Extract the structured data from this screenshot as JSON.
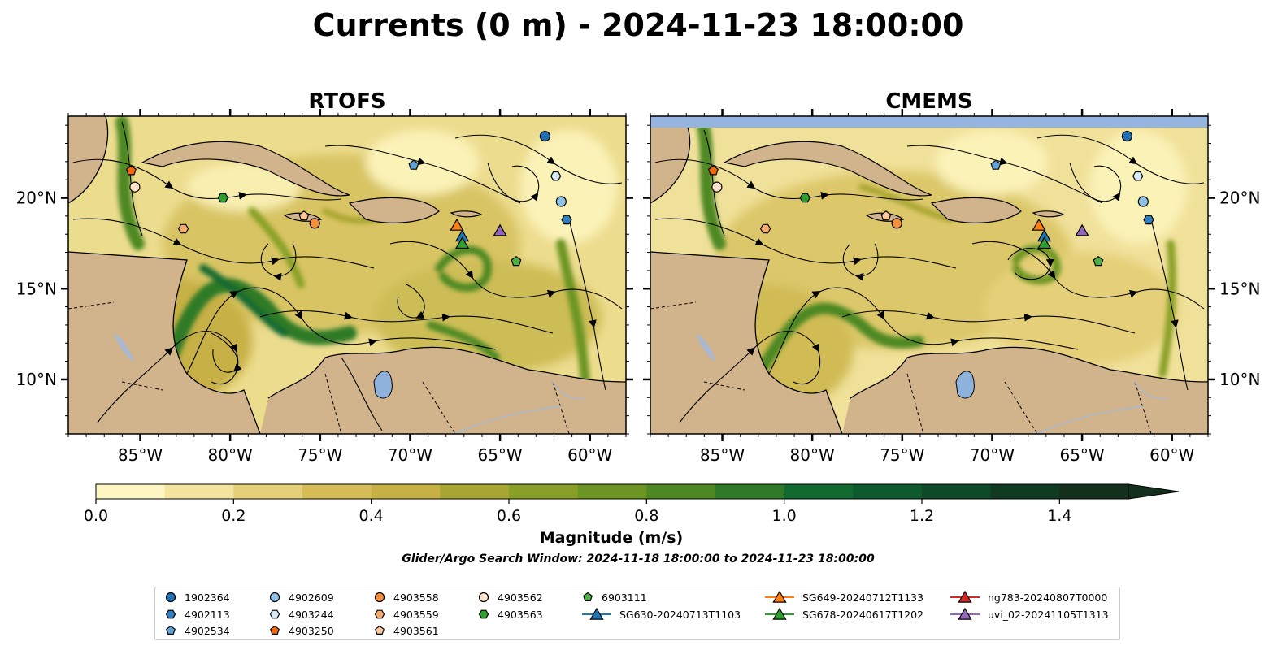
{
  "title": "Currents (0 m) - 2024-11-23 18:00:00",
  "panels": [
    {
      "name": "RTOFS"
    },
    {
      "name": "CMEMS"
    }
  ],
  "axes": {
    "x_ticks": [
      "85°W",
      "80°W",
      "75°W",
      "70°W",
      "65°W",
      "60°W"
    ],
    "x_values": [
      -85,
      -80,
      -75,
      -70,
      -65,
      -60
    ],
    "y_ticks": [
      "20°N",
      "15°N",
      "10°N"
    ],
    "y_values": [
      20,
      15,
      10
    ],
    "lon_range": [
      -89,
      -58
    ],
    "lat_range": [
      7,
      24.5
    ]
  },
  "colorbar": {
    "label": "Magnitude (m/s)",
    "ticks": [
      "0.0",
      "0.2",
      "0.4",
      "0.6",
      "0.8",
      "1.0",
      "1.2",
      "1.4"
    ],
    "tick_values": [
      0.0,
      0.2,
      0.4,
      0.6,
      0.8,
      1.0,
      1.2,
      1.4
    ],
    "range": [
      0.0,
      1.5
    ],
    "extend": "max",
    "colors": [
      "#fdf6c3",
      "#f3e59e",
      "#e5cf78",
      "#d7bd58",
      "#c7b045",
      "#a9a532",
      "#89a028",
      "#6c9524",
      "#4e8823",
      "#2f7a27",
      "#136a31",
      "#0d5a2e",
      "#0e4a28",
      "#113a22",
      "#13301c"
    ]
  },
  "search_window": "Glider/Argo Search Window: 2024-11-18 18:00:00 to 2024-11-23 18:00:00",
  "legend": [
    {
      "label": "1902364",
      "marker": "circle",
      "color": "#1f6fb4",
      "lon": -62.5,
      "lat": 23.4
    },
    {
      "label": "4902113",
      "marker": "hexagon",
      "color": "#2f7fc1",
      "lon": -61.3,
      "lat": 18.8
    },
    {
      "label": "4902534",
      "marker": "pentagon",
      "color": "#5fa2d8",
      "lon": -69.8,
      "lat": 21.8
    },
    {
      "label": "4902609",
      "marker": "circle",
      "color": "#8fc0e6",
      "lon": -61.6,
      "lat": 19.8
    },
    {
      "label": "4903244",
      "marker": "hexagon",
      "color": "#d6ebf7",
      "lon": -61.9,
      "lat": 21.2
    },
    {
      "label": "4903250",
      "marker": "pentagon",
      "color": "#ee6a0c",
      "lon": -85.5,
      "lat": 21.5
    },
    {
      "label": "4903558",
      "marker": "circle",
      "color": "#f58f3b",
      "lon": -75.3,
      "lat": 18.6
    },
    {
      "label": "4903559",
      "marker": "hexagon",
      "color": "#f7ad6d",
      "lon": -82.6,
      "lat": 18.3
    },
    {
      "label": "4903561",
      "marker": "pentagon",
      "color": "#fbc99b",
      "lon": -75.9,
      "lat": 19.0
    },
    {
      "label": "4903562",
      "marker": "circle",
      "color": "#fde2cc",
      "lon": -85.3,
      "lat": 20.6
    },
    {
      "label": "4903563",
      "marker": "hexagon",
      "color": "#2ca02c",
      "lon": -80.4,
      "lat": 20.0
    },
    {
      "label": "6903111",
      "marker": "pentagon",
      "color": "#4fb047",
      "lon": -64.1,
      "lat": 16.5
    },
    {
      "label": "SG630-20240713T1103",
      "marker": "triangle",
      "color": "#1f77b4",
      "lon": -67.1,
      "lat": 17.9
    },
    {
      "label": "SG649-20240712T1133",
      "marker": "triangle",
      "color": "#ff7f0e",
      "lon": -67.4,
      "lat": 18.5
    },
    {
      "label": "SG678-20240617T1202",
      "marker": "triangle",
      "color": "#2ca02c",
      "lon": -67.1,
      "lat": 17.5
    },
    {
      "label": "ng783-20240807T0000",
      "marker": "triangle",
      "color": "#d62728",
      "lon": null,
      "lat": null
    },
    {
      "label": "uvi_02-20241105T1313",
      "marker": "triangle",
      "color": "#9467bd",
      "lon": -65.0,
      "lat": 18.2
    }
  ],
  "colors": {
    "land": "#d2b48c",
    "water_body": "#8fb2dd",
    "cmems_nodata": "#95b5e0",
    "rivers": "#a9b8cf",
    "streamline": "#000000"
  }
}
